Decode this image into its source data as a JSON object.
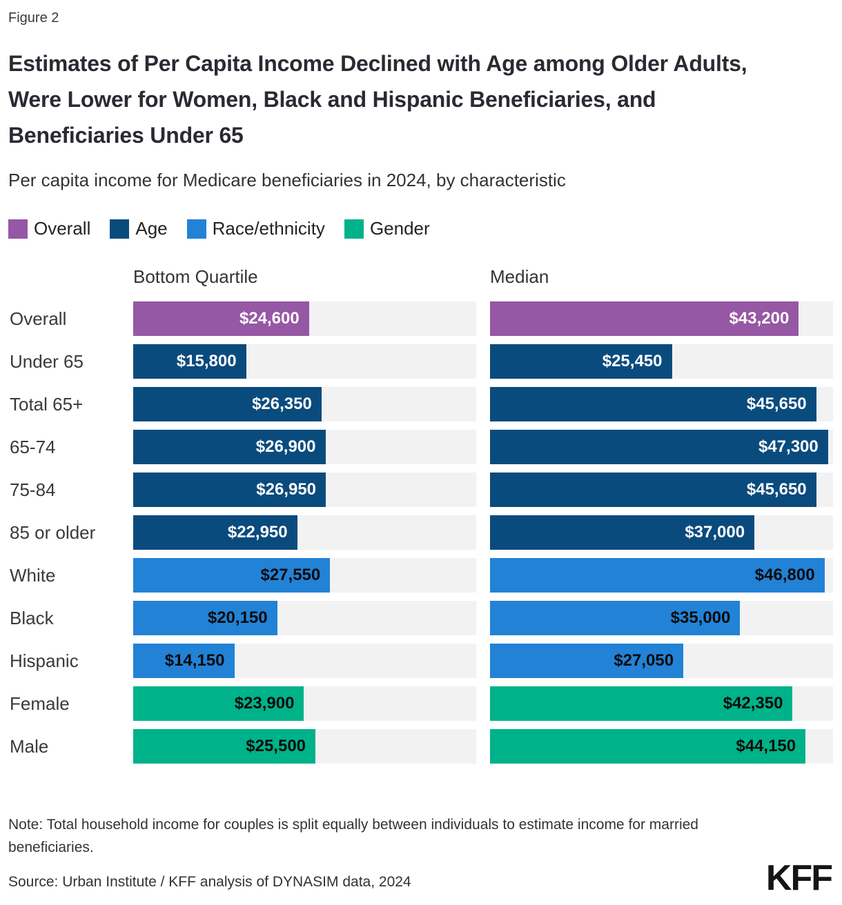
{
  "figure_label": "Figure 2",
  "title": "Estimates of Per Capita Income Declined with Age among Older Adults, Were Lower for Women, Black and Hispanic Beneficiaries, and Beneficiaries Under 65",
  "subtitle": "Per capita income for Medicare beneficiaries in 2024, by characteristic",
  "legend": [
    {
      "label": "Overall",
      "color": "#9657a4"
    },
    {
      "label": "Age",
      "color": "#0a4b7e"
    },
    {
      "label": "Race/ethnicity",
      "color": "#2282d6"
    },
    {
      "label": "Gender",
      "color": "#00b289"
    }
  ],
  "columns": [
    "Bottom Quartile",
    "Median"
  ],
  "chart_data": {
    "type": "bar",
    "title": "Per capita income for Medicare beneficiaries in 2024, by characteristic",
    "categories": [
      "Overall",
      "Under 65",
      "Total 65+",
      "65-74",
      "75-84",
      "85 or older",
      "White",
      "Black",
      "Hispanic",
      "Female",
      "Male"
    ],
    "series": [
      {
        "name": "Bottom Quartile",
        "values": [
          24600,
          15800,
          26350,
          26900,
          26950,
          22950,
          27550,
          20150,
          14150,
          23900,
          25500
        ]
      },
      {
        "name": "Median",
        "values": [
          43200,
          25450,
          45650,
          47300,
          45650,
          37000,
          46800,
          35000,
          27050,
          42350,
          44150
        ]
      }
    ],
    "group_of_category": [
      "Overall",
      "Age",
      "Age",
      "Age",
      "Age",
      "Age",
      "Race/ethnicity",
      "Race/ethnicity",
      "Race/ethnicity",
      "Gender",
      "Gender"
    ],
    "xlim": [
      0,
      48000
    ],
    "grid": false,
    "legend_position": "top",
    "value_labels": "inside-end"
  },
  "rows": [
    {
      "label": "Overall",
      "group": "Overall",
      "color": "#9657a4",
      "text_color": "#ffffff",
      "bq_value": 24600,
      "bq_label": "$24,600",
      "med_value": 43200,
      "med_label": "$43,200"
    },
    {
      "label": "Under 65",
      "group": "Age",
      "color": "#0a4b7e",
      "text_color": "#ffffff",
      "bq_value": 15800,
      "bq_label": "$15,800",
      "med_value": 25450,
      "med_label": "$25,450"
    },
    {
      "label": "Total 65+",
      "group": "Age",
      "color": "#0a4b7e",
      "text_color": "#ffffff",
      "bq_value": 26350,
      "bq_label": "$26,350",
      "med_value": 45650,
      "med_label": "$45,650"
    },
    {
      "label": "65-74",
      "group": "Age",
      "color": "#0a4b7e",
      "text_color": "#ffffff",
      "bq_value": 26900,
      "bq_label": "$26,900",
      "med_value": 47300,
      "med_label": "$47,300"
    },
    {
      "label": "75-84",
      "group": "Age",
      "color": "#0a4b7e",
      "text_color": "#ffffff",
      "bq_value": 26950,
      "bq_label": "$26,950",
      "med_value": 45650,
      "med_label": "$45,650"
    },
    {
      "label": "85 or older",
      "group": "Age",
      "color": "#0a4b7e",
      "text_color": "#ffffff",
      "bq_value": 22950,
      "bq_label": "$22,950",
      "med_value": 37000,
      "med_label": "$37,000"
    },
    {
      "label": "White",
      "group": "Race/ethnicity",
      "color": "#2282d6",
      "text_color": "#0b0b0b",
      "bq_value": 27550,
      "bq_label": "$27,550",
      "med_value": 46800,
      "med_label": "$46,800"
    },
    {
      "label": "Black",
      "group": "Race/ethnicity",
      "color": "#2282d6",
      "text_color": "#0b0b0b",
      "bq_value": 20150,
      "bq_label": "$20,150",
      "med_value": 35000,
      "med_label": "$35,000"
    },
    {
      "label": "Hispanic",
      "group": "Race/ethnicity",
      "color": "#2282d6",
      "text_color": "#0b0b0b",
      "bq_value": 14150,
      "bq_label": "$14,150",
      "med_value": 27050,
      "med_label": "$27,050"
    },
    {
      "label": "Female",
      "group": "Gender",
      "color": "#00b289",
      "text_color": "#0b0b0b",
      "bq_value": 23900,
      "bq_label": "$23,900",
      "med_value": 42350,
      "med_label": "$42,350"
    },
    {
      "label": "Male",
      "group": "Gender",
      "color": "#00b289",
      "text_color": "#0b0b0b",
      "bq_value": 25500,
      "bq_label": "$25,500",
      "med_value": 44150,
      "med_label": "$44,150"
    }
  ],
  "note": "Note: Total household income for couples is split equally between individuals to estimate income for married beneficiaries.",
  "source": "Source: Urban Institute / KFF analysis of DYNASIM data, 2024",
  "logo_text": "KFF",
  "colors": {
    "track": "#f2f2f2",
    "title_text": "#2a2a33",
    "body_text": "#333333",
    "background": "#ffffff"
  }
}
